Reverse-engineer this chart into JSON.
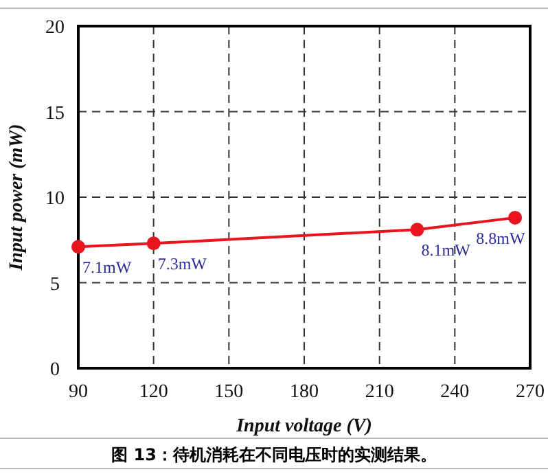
{
  "chart_data": {
    "type": "line",
    "xlabel": "Input voltage (V)",
    "ylabel": "Input power (mW)",
    "x": [
      90,
      120,
      225,
      264
    ],
    "series": [
      {
        "color": "#e8141e",
        "values": [
          7.1,
          7.3,
          8.1,
          8.8
        ],
        "value_labels": [
          "7.1mW",
          "7.3mW",
          "8.1mW",
          "8.8mW"
        ]
      }
    ],
    "xlim": [
      90,
      270
    ],
    "xticks": [
      90,
      120,
      150,
      180,
      210,
      240,
      270
    ],
    "ylim": [
      0,
      20
    ],
    "yticks": [
      0,
      5,
      10,
      15,
      20
    ],
    "grid": true,
    "marker": "circle",
    "line_style": "solid",
    "annotations": [
      "图 13：待机消耗在不同电压时的实测结果。"
    ]
  }
}
